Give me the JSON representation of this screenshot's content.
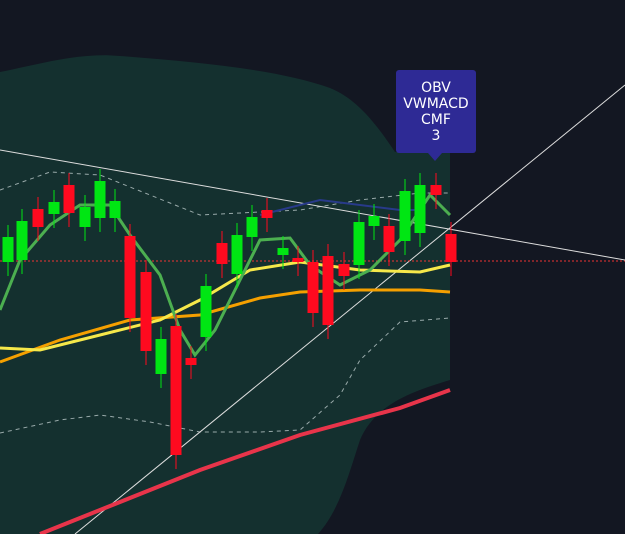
{
  "tooltip": {
    "lines": [
      "OBV",
      "VWMACD",
      "CMF",
      "3"
    ]
  }
}
